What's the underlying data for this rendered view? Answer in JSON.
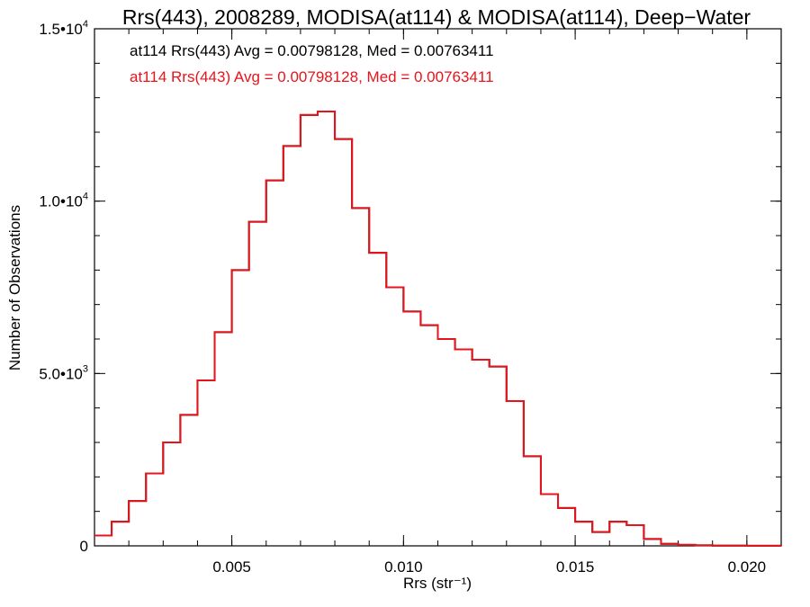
{
  "chart_data": {
    "type": "line",
    "title": "Rrs(443), 2008289, MODISA(at114) & MODISA(at114), Deep−Water",
    "xlabel": "Rrs (str⁻¹)",
    "ylabel": "Number of Observations",
    "xlim": [
      0.001,
      0.021
    ],
    "ylim": [
      0,
      15000
    ],
    "x_ticks": [
      {
        "value": 0.005,
        "label": "0.005"
      },
      {
        "value": 0.01,
        "label": "0.010"
      },
      {
        "value": 0.015,
        "label": "0.015"
      },
      {
        "value": 0.02,
        "label": "0.020"
      }
    ],
    "y_ticks": [
      {
        "value": 0,
        "mant": "0",
        "exp": ""
      },
      {
        "value": 5000,
        "mant": "5.0•10",
        "exp": "3"
      },
      {
        "value": 10000,
        "mant": "1.0•10",
        "exp": "4"
      },
      {
        "value": 15000,
        "mant": "1.5•10",
        "exp": "4"
      }
    ],
    "grid": false,
    "colors": {
      "series1": "#000000",
      "series2": "#e8141c"
    },
    "annotations": [
      {
        "text": "at114 Rrs(443) Avg = 0.00798128, Med = 0.00763411",
        "color": "#000000"
      },
      {
        "text": "at114 Rrs(443) Avg = 0.00798128, Med = 0.00763411",
        "color": "#e8141c"
      }
    ],
    "x": [
      0.001,
      0.0015,
      0.002,
      0.0025,
      0.003,
      0.0035,
      0.004,
      0.0045,
      0.005,
      0.0055,
      0.006,
      0.0065,
      0.007,
      0.0075,
      0.008,
      0.0085,
      0.009,
      0.0095,
      0.01,
      0.0105,
      0.011,
      0.0115,
      0.012,
      0.0125,
      0.013,
      0.0135,
      0.014,
      0.0145,
      0.015,
      0.0155,
      0.016,
      0.0165,
      0.017,
      0.0175,
      0.018,
      0.0185,
      0.019,
      0.02,
      0.021
    ],
    "series": [
      {
        "values": [
          300,
          700,
          1300,
          2100,
          3000,
          3800,
          4800,
          6200,
          8000,
          9400,
          10600,
          11600,
          12500,
          12600,
          11800,
          9800,
          8500,
          7500,
          6800,
          6400,
          6000,
          5700,
          5400,
          5200,
          4200,
          2600,
          1500,
          1100,
          700,
          400,
          700,
          600,
          200,
          60,
          30,
          15,
          5,
          2,
          0
        ]
      },
      {
        "values": [
          300,
          700,
          1300,
          2100,
          3000,
          3800,
          4800,
          6200,
          8000,
          9400,
          10600,
          11600,
          12500,
          12600,
          11800,
          9800,
          8500,
          7500,
          6800,
          6400,
          6000,
          5700,
          5400,
          5200,
          4200,
          2600,
          1500,
          1100,
          700,
          400,
          700,
          600,
          200,
          60,
          30,
          15,
          5,
          2,
          0
        ]
      }
    ]
  }
}
